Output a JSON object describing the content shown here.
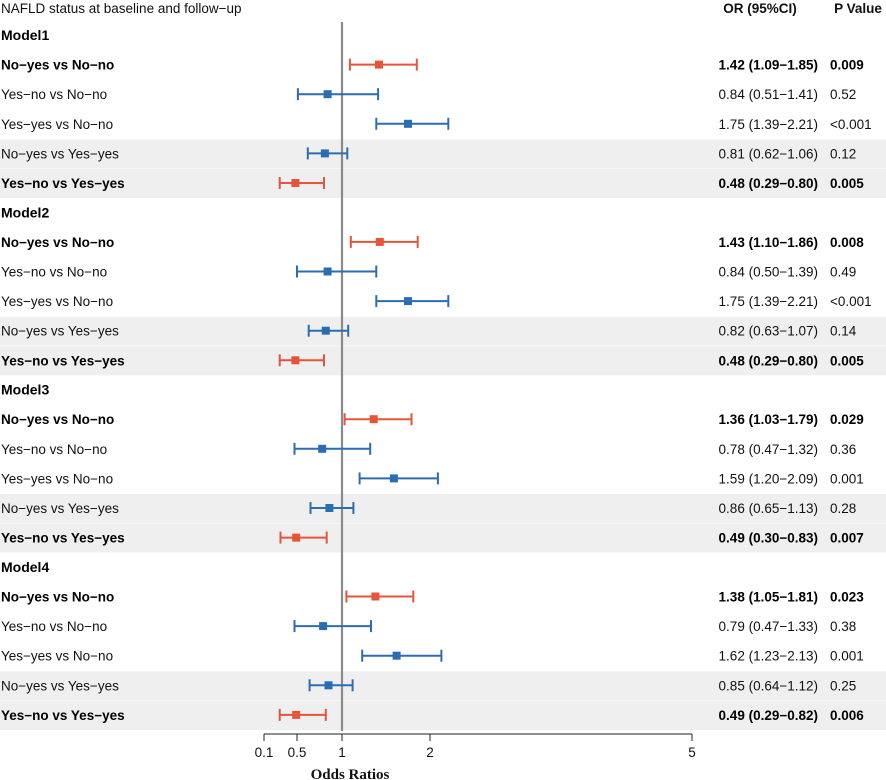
{
  "header": {
    "title": "NAFLD status at baseline and follow−up",
    "or_header": "OR (95%CI)",
    "p_header": "P Value"
  },
  "colors": {
    "significant": "#e4553a",
    "nonsignificant": "#2b6db3",
    "shade": "#efefef",
    "refline": "#8a8a8a"
  },
  "chart_data": {
    "type": "forest",
    "title": "NAFLD status at baseline and follow−up",
    "xlabel": "Odds Ratios",
    "reference_value": 1,
    "xticks": [
      {
        "value": 0.1,
        "label": "0.1"
      },
      {
        "value": 0.5,
        "label": "0.5"
      },
      {
        "value": 1,
        "label": "1"
      },
      {
        "value": 2,
        "label": "2"
      },
      {
        "value": 5,
        "label": "5"
      }
    ],
    "groups": [
      {
        "name": "Model1",
        "rows": [
          {
            "label": "No−yes vs No−no",
            "or": 1.42,
            "lo": 1.09,
            "hi": 1.85,
            "or_text": "1.42 (1.09−1.85)",
            "p": "0.009",
            "significant": true,
            "shaded": false
          },
          {
            "label": "Yes−no vs No−no",
            "or": 0.84,
            "lo": 0.51,
            "hi": 1.41,
            "or_text": "0.84 (0.51−1.41)",
            "p": "0.52",
            "significant": false,
            "shaded": false
          },
          {
            "label": "Yes−yes vs No−no",
            "or": 1.75,
            "lo": 1.39,
            "hi": 2.21,
            "or_text": "1.75 (1.39−2.21)",
            "p": "<0.001",
            "significant": false,
            "shaded": false
          },
          {
            "label": "No−yes vs Yes−yes",
            "or": 0.81,
            "lo": 0.62,
            "hi": 1.06,
            "or_text": "0.81 (0.62−1.06)",
            "p": "0.12",
            "significant": false,
            "shaded": true
          },
          {
            "label": "Yes−no vs Yes−yes",
            "or": 0.48,
            "lo": 0.29,
            "hi": 0.8,
            "or_text": "0.48 (0.29−0.80)",
            "p": "0.005",
            "significant": true,
            "shaded": true
          }
        ]
      },
      {
        "name": "Model2",
        "rows": [
          {
            "label": "No−yes vs No−no",
            "or": 1.43,
            "lo": 1.1,
            "hi": 1.86,
            "or_text": "1.43 (1.10−1.86)",
            "p": "0.008",
            "significant": true,
            "shaded": false
          },
          {
            "label": "Yes−no vs No−no",
            "or": 0.84,
            "lo": 0.5,
            "hi": 1.39,
            "or_text": "0.84 (0.50−1.39)",
            "p": "0.49",
            "significant": false,
            "shaded": false
          },
          {
            "label": "Yes−yes vs No−no",
            "or": 1.75,
            "lo": 1.39,
            "hi": 2.21,
            "or_text": "1.75 (1.39−2.21)",
            "p": "<0.001",
            "significant": false,
            "shaded": false
          },
          {
            "label": "No−yes vs Yes−yes",
            "or": 0.82,
            "lo": 0.63,
            "hi": 1.07,
            "or_text": "0.82 (0.63−1.07)",
            "p": "0.14",
            "significant": false,
            "shaded": true
          },
          {
            "label": "Yes−no vs Yes−yes",
            "or": 0.48,
            "lo": 0.29,
            "hi": 0.8,
            "or_text": "0.48 (0.29−0.80)",
            "p": "0.005",
            "significant": true,
            "shaded": true
          }
        ]
      },
      {
        "name": "Model3",
        "rows": [
          {
            "label": "No−yes vs No−no",
            "or": 1.36,
            "lo": 1.03,
            "hi": 1.79,
            "or_text": "1.36 (1.03−1.79)",
            "p": "0.029",
            "significant": true,
            "shaded": false
          },
          {
            "label": "Yes−no vs No−no",
            "or": 0.78,
            "lo": 0.47,
            "hi": 1.32,
            "or_text": "0.78 (0.47−1.32)",
            "p": "0.36",
            "significant": false,
            "shaded": false
          },
          {
            "label": "Yes−yes vs No−no",
            "or": 1.59,
            "lo": 1.2,
            "hi": 2.09,
            "or_text": "1.59 (1.20−2.09)",
            "p": "0.001",
            "significant": false,
            "shaded": false
          },
          {
            "label": "No−yes vs Yes−yes",
            "or": 0.86,
            "lo": 0.65,
            "hi": 1.13,
            "or_text": "0.86 (0.65−1.13)",
            "p": "0.28",
            "significant": false,
            "shaded": true
          },
          {
            "label": "Yes−no vs Yes−yes",
            "or": 0.49,
            "lo": 0.3,
            "hi": 0.83,
            "or_text": "0.49 (0.30−0.83)",
            "p": "0.007",
            "significant": true,
            "shaded": true
          }
        ]
      },
      {
        "name": "Model4",
        "rows": [
          {
            "label": "No−yes vs No−no",
            "or": 1.38,
            "lo": 1.05,
            "hi": 1.81,
            "or_text": "1.38 (1.05−1.81)",
            "p": "0.023",
            "significant": true,
            "shaded": false
          },
          {
            "label": "Yes−no vs No−no",
            "or": 0.79,
            "lo": 0.47,
            "hi": 1.33,
            "or_text": "0.79 (0.47−1.33)",
            "p": "0.38",
            "significant": false,
            "shaded": false
          },
          {
            "label": "Yes−yes vs No−no",
            "or": 1.62,
            "lo": 1.23,
            "hi": 2.13,
            "or_text": "1.62 (1.23−2.13)",
            "p": "0.001",
            "significant": false,
            "shaded": false
          },
          {
            "label": "No−yes vs Yes−yes",
            "or": 0.85,
            "lo": 0.64,
            "hi": 1.12,
            "or_text": "0.85 (0.64−1.12)",
            "p": "0.25",
            "significant": false,
            "shaded": true
          },
          {
            "label": "Yes−no vs Yes−yes",
            "or": 0.49,
            "lo": 0.29,
            "hi": 0.82,
            "or_text": "0.49 (0.29−0.82)",
            "p": "0.006",
            "significant": true,
            "shaded": true
          }
        ]
      }
    ]
  }
}
